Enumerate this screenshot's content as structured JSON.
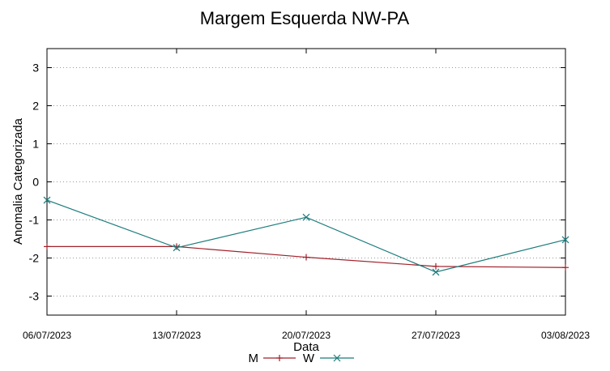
{
  "chart_data": {
    "type": "line",
    "title": "Margem Esquerda NW-PA",
    "xlabel": "Data",
    "ylabel": "Anomalia Categorizada",
    "categories": [
      "06/07/2023",
      "13/07/2023",
      "20/07/2023",
      "27/07/2023",
      "03/08/2023"
    ],
    "ylim": [
      -3.5,
      3.5
    ],
    "yticks": [
      3,
      2,
      1,
      0,
      -1,
      -2,
      -3
    ],
    "grid": "horizontal dotted",
    "legend_position": "bottom-center",
    "series": [
      {
        "name": "M",
        "color": "#a0202a",
        "marker": "plus",
        "values": [
          -1.7,
          -1.7,
          -1.98,
          -2.22,
          -2.25
        ]
      },
      {
        "name": "W",
        "color": "#1b7b7b",
        "marker": "x",
        "values": [
          -0.48,
          -1.73,
          -0.93,
          -2.37,
          -1.52
        ]
      }
    ]
  }
}
